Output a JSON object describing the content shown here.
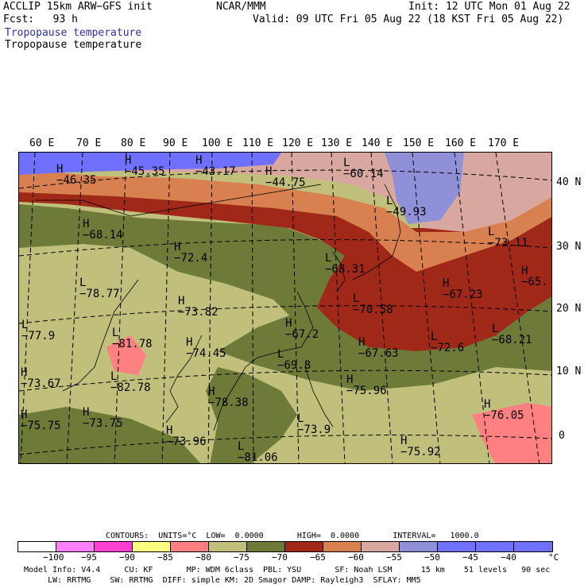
{
  "header": {
    "model": "ACCLIP 15km ARW−GFS init",
    "org": "NCAR/MMM",
    "init": "Init: 12 UTC Mon 01 Aug 22",
    "fcst": "Fcst:   93 h",
    "valid": "Valid: 09 UTC Fri 05 Aug 22 (18 KST Fri 05 Aug 22)",
    "field_title_blue": "Tropopause temperature",
    "field_title_black": "Tropopause temperature"
  },
  "axes": {
    "lon_labels": [
      "60 E",
      "70 E",
      "80 E",
      "90 E",
      "100 E",
      "110 E",
      "120 E",
      "130 E",
      "140 E",
      "150 E",
      "160 E",
      "170 E"
    ],
    "lat_labels": [
      "40 N",
      "30 N",
      "20 N",
      "10 N",
      "0"
    ]
  },
  "map_markers": [
    {
      "symbol": "H",
      "value": "−46.35"
    },
    {
      "symbol": "H",
      "value": "−45.35"
    },
    {
      "symbol": "H",
      "value": "−43.17"
    },
    {
      "symbol": "H",
      "value": "−44.75"
    },
    {
      "symbol": "L",
      "value": "−60.14"
    },
    {
      "symbol": "L",
      "value": "−49.93"
    },
    {
      "symbol": "H",
      "value": "−68.14"
    },
    {
      "symbol": "H",
      "value": "−72.4"
    },
    {
      "symbol": "L",
      "value": "−73.11"
    },
    {
      "symbol": "L",
      "value": "−68.31"
    },
    {
      "symbol": "L",
      "value": "−78.77"
    },
    {
      "symbol": "H",
      "value": "−67.23"
    },
    {
      "symbol": "H",
      "value": "−65."
    },
    {
      "symbol": "H",
      "value": "−73.82"
    },
    {
      "symbol": "L",
      "value": "−70.58"
    },
    {
      "symbol": "L",
      "value": "−77.9"
    },
    {
      "symbol": "L",
      "value": "−81.78"
    },
    {
      "symbol": "H",
      "value": "−67.2"
    },
    {
      "symbol": "H",
      "value": "−67.63"
    },
    {
      "symbol": "L",
      "value": "−72.6"
    },
    {
      "symbol": "L",
      "value": "−68.21"
    },
    {
      "symbol": "H",
      "value": "−74.45"
    },
    {
      "symbol": "L",
      "value": "−69.8"
    },
    {
      "symbol": "H",
      "value": "−73.67"
    },
    {
      "symbol": "L",
      "value": "−82.78"
    },
    {
      "symbol": "H",
      "value": "−75.96"
    },
    {
      "symbol": "H",
      "value": "−78.38"
    },
    {
      "symbol": "H",
      "value": "−76.05"
    },
    {
      "symbol": "H",
      "value": "−75.75"
    },
    {
      "symbol": "H",
      "value": "−73.75"
    },
    {
      "symbol": "L",
      "value": "−73.9"
    },
    {
      "symbol": "H",
      "value": "−73.96"
    },
    {
      "symbol": "H",
      "value": "−75.92"
    },
    {
      "symbol": "L",
      "value": "−81.06"
    }
  ],
  "contour_info": {
    "contours": "CONTOURS:  UNITS=°C  LOW=  0.0000       HIGH=  0.0000       INTERVAL=   1000.0"
  },
  "colorbar": {
    "colors": [
      "#ffffff",
      "#ff80ff",
      "#ff40d0",
      "#ffff80",
      "#ff8080",
      "#c0c07c",
      "#6e7a38",
      "#a02818",
      "#d88050",
      "#d8a8a0",
      "#9090d8",
      "#7070ff",
      "#7070ff",
      "#7070ff"
    ],
    "labels": [
      "−100",
      "−95",
      "−90",
      "−85",
      "−80",
      "−75",
      "−70",
      "−65",
      "−60",
      "−55",
      "−50",
      "−45",
      "−40",
      "°C"
    ]
  },
  "footer": {
    "line1": "Model Info: V4.4     CU: KF       MP: WDM 6class  PBL: YSU       SF: Noah LSM      15 km    51 levels   90 sec",
    "line2": "     LW: RRTMG    SW: RRTMG  DIFF: simple KM: 2D Smagor DAMP: Rayleigh3  SFLAY: MM5"
  }
}
